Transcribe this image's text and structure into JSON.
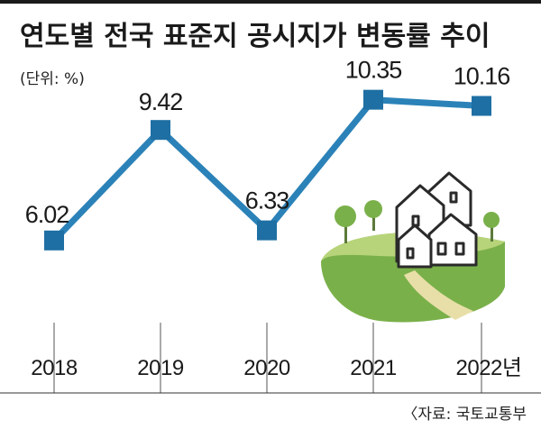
{
  "chart_data": {
    "type": "line",
    "title": "연도별 전국 표준지 공시지가 변동률 추이",
    "unit_note": "(단위: %)",
    "categories": [
      "2018",
      "2019",
      "2020",
      "2021",
      "2022년"
    ],
    "values": [
      6.02,
      9.42,
      6.33,
      10.35,
      10.16
    ],
    "value_labels": [
      "6.02",
      "9.42",
      "6.33",
      "10.35",
      "10.16"
    ],
    "source": "〈자료: 국토교통부",
    "ylim": [
      4.6,
      11.2
    ],
    "grid": false,
    "colors": {
      "line": "#2b82b8",
      "marker": "#1e6fa3"
    }
  }
}
